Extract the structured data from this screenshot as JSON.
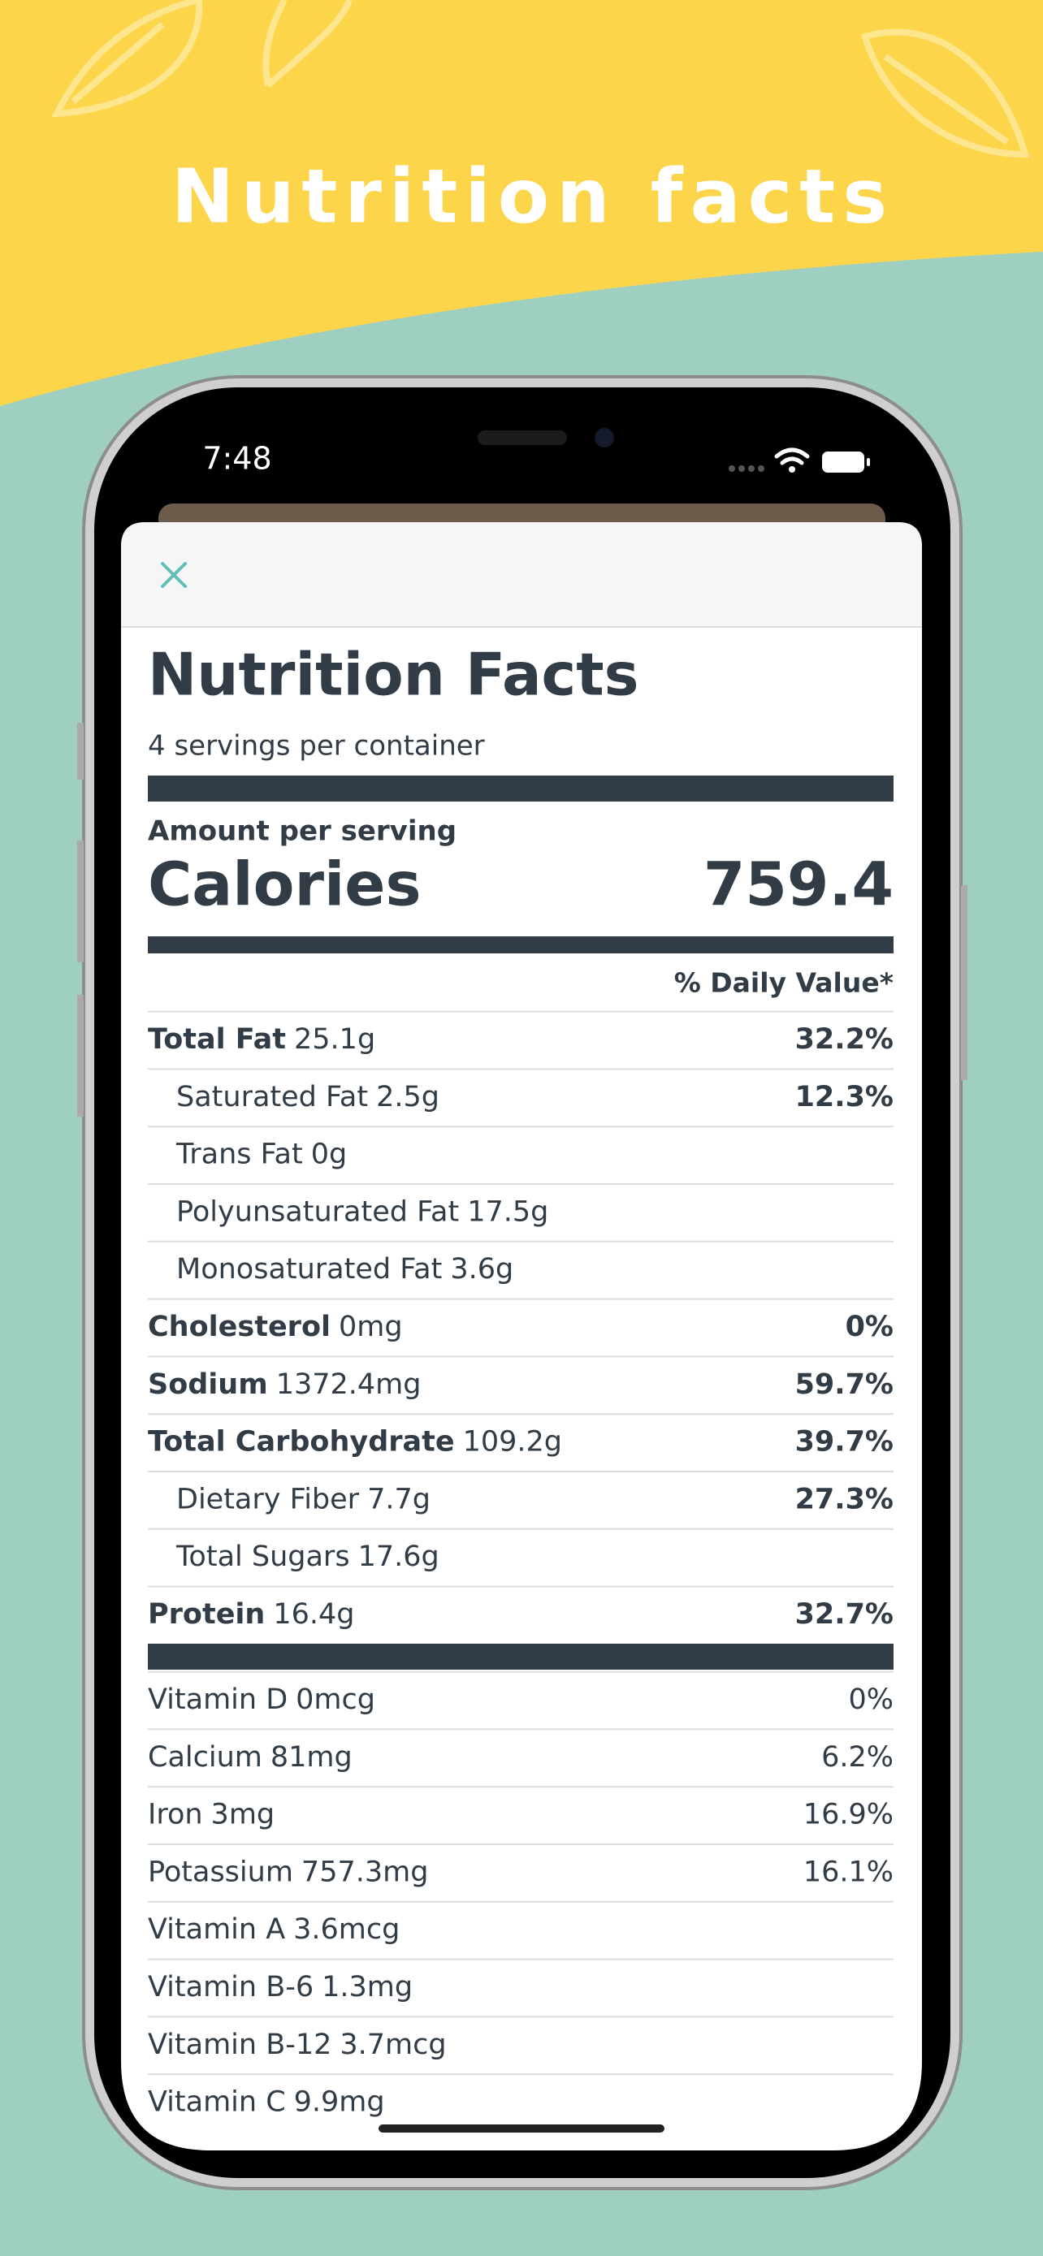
{
  "header": {
    "title": "Nutrition facts"
  },
  "status": {
    "time": "7:48"
  },
  "label": {
    "title": "Nutrition Facts",
    "servings": "4 servings per container",
    "amount_label": "Amount per serving",
    "calories_label": "Calories",
    "calories_value": "759.4",
    "daily_value_header": "% Daily Value*",
    "nutrients": [
      {
        "name": "Total Fat",
        "amount": "25.1g",
        "dv": "32.2%",
        "bold": true
      },
      {
        "name": "Saturated Fat",
        "amount": "2.5g",
        "dv": "12.3%",
        "indent": true
      },
      {
        "name": "Trans Fat",
        "amount": "0g",
        "indent": true
      },
      {
        "name": "Polyunsaturated Fat",
        "amount": "17.5g",
        "indent": true
      },
      {
        "name": "Monosaturated Fat",
        "amount": "3.6g",
        "indent": true
      },
      {
        "name": "Cholesterol",
        "amount": "0mg",
        "dv": "0%",
        "bold": true
      },
      {
        "name": "Sodium",
        "amount": "1372.4mg",
        "dv": "59.7%",
        "bold": true
      },
      {
        "name": "Total Carbohydrate",
        "amount": "109.2g",
        "dv": "39.7%",
        "bold": true
      },
      {
        "name": "Dietary Fiber",
        "amount": "7.7g",
        "dv": "27.3%",
        "indent": true
      },
      {
        "name": "Total Sugars",
        "amount": "17.6g",
        "indent": true
      },
      {
        "name": "Protein",
        "amount": "16.4g",
        "dv": "32.7%",
        "bold": true
      }
    ],
    "vitamins": [
      {
        "name": "Vitamin D",
        "amount": "0mcg",
        "dv": "0%"
      },
      {
        "name": "Calcium",
        "amount": "81mg",
        "dv": "6.2%"
      },
      {
        "name": "Iron",
        "amount": "3mg",
        "dv": "16.9%"
      },
      {
        "name": "Potassium",
        "amount": "757.3mg",
        "dv": "16.1%"
      },
      {
        "name": "Vitamin A",
        "amount": "3.6mcg"
      },
      {
        "name": "Vitamin B-6",
        "amount": "1.3mg"
      },
      {
        "name": "Vitamin B-12",
        "amount": "3.7mcg"
      },
      {
        "name": "Vitamin C",
        "amount": "9.9mg"
      }
    ]
  }
}
